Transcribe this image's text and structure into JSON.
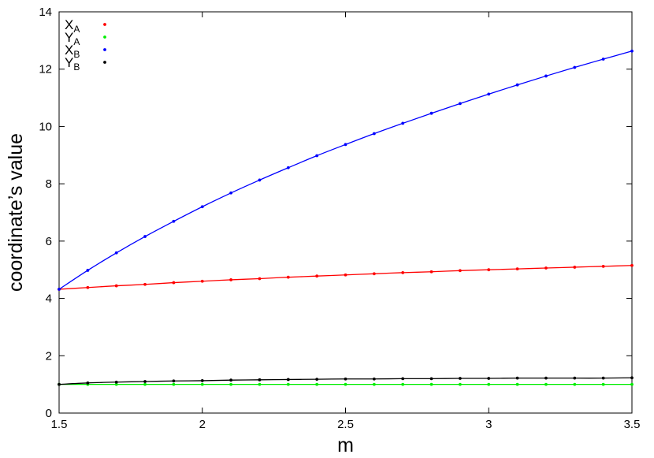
{
  "chart_data": {
    "type": "line",
    "title": "",
    "xlabel": "m",
    "ylabel": "coordinate’s value",
    "xlim": [
      1.5,
      3.5
    ],
    "ylim": [
      0,
      14
    ],
    "xticks": [
      1.5,
      2,
      2.5,
      3,
      3.5
    ],
    "xtick_labels": [
      "1.5",
      "2",
      "2.5",
      "3",
      "3.5"
    ],
    "yticks": [
      0,
      2,
      4,
      6,
      8,
      10,
      12,
      14
    ],
    "ytick_labels": [
      "0",
      "2",
      "4",
      "6",
      "8",
      "10",
      "12",
      "14"
    ],
    "grid": false,
    "legend_position": "top-left",
    "x": [
      1.5,
      1.6,
      1.7,
      1.8,
      1.9,
      2.0,
      2.1,
      2.2,
      2.3,
      2.4,
      2.5,
      2.6,
      2.7,
      2.8,
      2.9,
      3.0,
      3.1,
      3.2,
      3.3,
      3.4,
      3.5
    ],
    "series": [
      {
        "name": "X",
        "subscript": "A",
        "color": "#ff0000",
        "values": [
          4.32,
          4.38,
          4.44,
          4.49,
          4.55,
          4.6,
          4.65,
          4.69,
          4.74,
          4.78,
          4.82,
          4.86,
          4.9,
          4.93,
          4.97,
          5.0,
          5.03,
          5.06,
          5.09,
          5.12,
          5.15
        ]
      },
      {
        "name": "Y",
        "subscript": "A",
        "color": "#00ee00",
        "values": [
          1.0,
          1.0,
          1.0,
          1.0,
          1.0,
          1.0,
          1.0,
          1.0,
          1.0,
          1.0,
          1.0,
          1.0,
          1.0,
          1.0,
          1.0,
          1.0,
          1.0,
          1.0,
          1.0,
          1.0,
          1.0
        ]
      },
      {
        "name": "X",
        "subscript": "B",
        "color": "#0000ff",
        "values": [
          4.32,
          4.98,
          5.59,
          6.16,
          6.69,
          7.2,
          7.68,
          8.13,
          8.56,
          8.98,
          9.37,
          9.75,
          10.11,
          10.46,
          10.8,
          11.13,
          11.45,
          11.76,
          12.06,
          12.35,
          12.63
        ]
      },
      {
        "name": "Y",
        "subscript": "B",
        "color": "#000000",
        "values": [
          1.0,
          1.05,
          1.08,
          1.1,
          1.12,
          1.13,
          1.15,
          1.16,
          1.17,
          1.18,
          1.19,
          1.19,
          1.2,
          1.2,
          1.21,
          1.21,
          1.22,
          1.22,
          1.22,
          1.22,
          1.23
        ]
      }
    ]
  }
}
